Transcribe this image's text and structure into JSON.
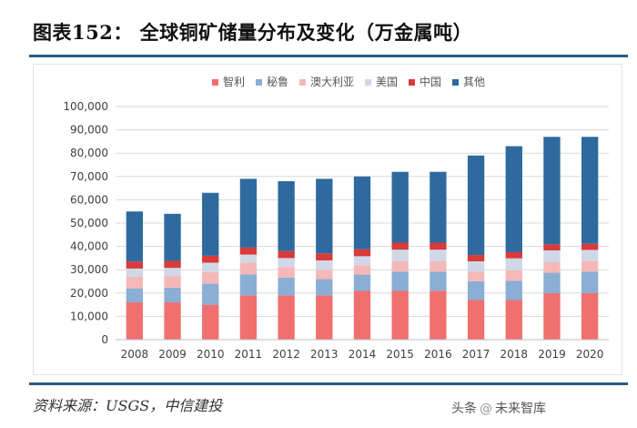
{
  "header": {
    "title": "图表152：  全球铜矿储量分布及变化（万金属吨）"
  },
  "chart_data": {
    "type": "bar",
    "stacked": true,
    "title": "",
    "xlabel": "",
    "ylabel": "",
    "ylim": [
      0,
      100000
    ],
    "yticks": [
      "0",
      "10,000",
      "20,000",
      "30,000",
      "40,000",
      "50,000",
      "60,000",
      "70,000",
      "80,000",
      "90,000",
      "100,000"
    ],
    "grid": true,
    "legend_position": "top",
    "categories": [
      "2008",
      "2009",
      "2010",
      "2011",
      "2012",
      "2013",
      "2014",
      "2015",
      "2016",
      "2017",
      "2018",
      "2019",
      "2020"
    ],
    "series": [
      {
        "name": "智利",
        "color": "#f07070",
        "values": [
          16000,
          16000,
          15000,
          19000,
          19000,
          19000,
          20900,
          20900,
          21000,
          17000,
          17000,
          20000,
          20000
        ]
      },
      {
        "name": "秘鲁",
        "color": "#8aaed4",
        "values": [
          6000,
          6300,
          9000,
          9000,
          7600,
          7000,
          7000,
          8200,
          8100,
          8100,
          8300,
          8700,
          9200
        ]
      },
      {
        "name": "澳大利亚",
        "color": "#f5b8b8",
        "values": [
          5000,
          5000,
          5000,
          5000,
          4500,
          4000,
          4000,
          4500,
          4500,
          4000,
          4500,
          4500,
          4500
        ]
      },
      {
        "name": "美国",
        "color": "#d0d8e8",
        "values": [
          3500,
          3500,
          4000,
          3500,
          3900,
          4000,
          3900,
          5000,
          5000,
          4500,
          5100,
          5100,
          4800
        ]
      },
      {
        "name": "中国",
        "color": "#d93a3a",
        "values": [
          3000,
          3000,
          3000,
          3000,
          3000,
          3000,
          3000,
          3000,
          3000,
          2700,
          2600,
          2600,
          2600
        ]
      },
      {
        "name": "其他",
        "color": "#2f6a9e",
        "values": [
          21500,
          20200,
          27000,
          29500,
          30000,
          32000,
          31200,
          30400,
          30400,
          42700,
          45500,
          46100,
          45900
        ]
      }
    ]
  },
  "footer": {
    "source": "资料来源：USGS，中信建投",
    "watermark_prefix": "头条",
    "watermark_mark": "@",
    "watermark_name": "未来智库"
  }
}
